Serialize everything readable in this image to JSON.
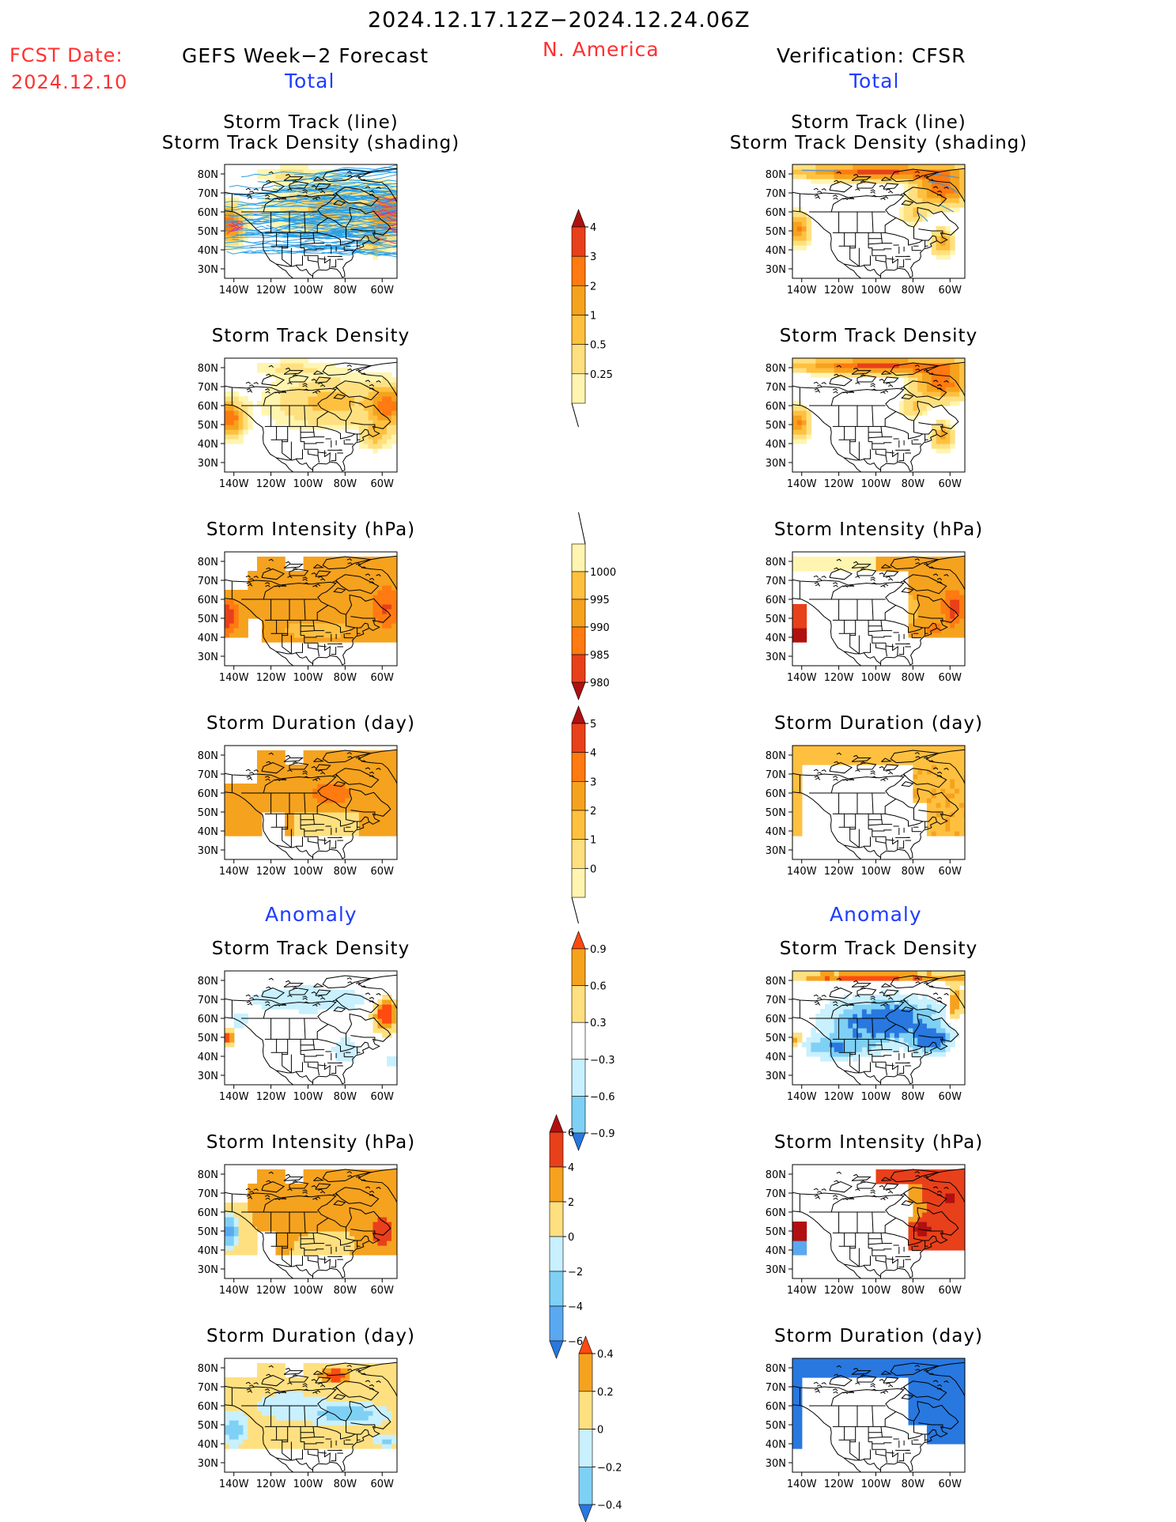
{
  "header": {
    "period": "2024.12.17.12Z−2024.12.24.06Z",
    "fcst_label": "FCST Date:",
    "fcst_date": "2024.12.10",
    "left_title": "GEFS Week−2 Forecast",
    "region": "N. America",
    "right_title": "Verification: CFSR",
    "total_left": "Total",
    "total_right": "Total",
    "anomaly_left": "Anomaly",
    "anomaly_right": "Anomaly"
  },
  "colors": {
    "lightyellow": "#fff5b0",
    "yellow": "#ffe080",
    "orange_light": "#ffc040",
    "orange": "#f5a21e",
    "orange_dark": "#ff7a10",
    "red": "#e8401a",
    "dark_red": "#b01010",
    "lightblue": "#c8f0ff",
    "sky": "#7fd0f5",
    "blue": "#2878e0",
    "dark_blue": "#1050c8",
    "track_line": "#2aa0e8",
    "land_line": "#000000"
  },
  "chart_data": [
    {
      "type": "heatmap",
      "id": "l1",
      "title1": "Storm Track (line)",
      "title2": "Storm Track Density (shading)",
      "field": "track_line_fcst"
    },
    {
      "type": "heatmap",
      "id": "l2",
      "title1": "Storm Track Density",
      "field": "density_fcst"
    },
    {
      "type": "heatmap",
      "id": "l3",
      "title1": "Storm Intensity (hPa)",
      "field": "intensity_fcst"
    },
    {
      "type": "heatmap",
      "id": "l4",
      "title1": "Storm Duration (day)",
      "field": "duration_fcst"
    },
    {
      "type": "heatmap",
      "id": "l5",
      "title1": "Storm Track Density",
      "field": "density_anom_fcst"
    },
    {
      "type": "heatmap",
      "id": "l6",
      "title1": "Storm Intensity (hPa)",
      "field": "intensity_anom_fcst"
    },
    {
      "type": "heatmap",
      "id": "l7",
      "title1": "Storm Duration (day)",
      "field": "duration_anom_fcst"
    },
    {
      "type": "heatmap",
      "id": "r1",
      "title1": "Storm Track (line)",
      "title2": "Storm Track Density (shading)",
      "field": "track_line_obs"
    },
    {
      "type": "heatmap",
      "id": "r2",
      "title1": "Storm Track Density",
      "field": "density_obs"
    },
    {
      "type": "heatmap",
      "id": "r3",
      "title1": "Storm Intensity (hPa)",
      "field": "intensity_obs"
    },
    {
      "type": "heatmap",
      "id": "r4",
      "title1": "Storm Duration (day)",
      "field": "duration_obs"
    },
    {
      "type": "heatmap",
      "id": "r5",
      "title1": "Storm Track Density",
      "field": "density_anom_obs"
    },
    {
      "type": "heatmap",
      "id": "r6",
      "title1": "Storm Intensity (hPa)",
      "field": "intensity_anom_obs"
    },
    {
      "type": "heatmap",
      "id": "r7",
      "title1": "Storm Duration (day)",
      "field": "duration_anom_obs"
    }
  ],
  "axes": {
    "x_ticks": [
      "140W",
      "120W",
      "100W",
      "80W",
      "60W"
    ],
    "y_ticks": [
      "80N",
      "70N",
      "60N",
      "50N",
      "40N",
      "30N"
    ],
    "x_range": [
      -145,
      -52
    ],
    "y_range": [
      25,
      85
    ]
  },
  "colorbars": [
    {
      "id": "cb_density",
      "labels": [
        "4",
        "3",
        "2",
        "1",
        "0.5",
        "0.25"
      ],
      "colors": [
        "#b01010",
        "#e8401a",
        "#ff7a10",
        "#f5a21e",
        "#ffc040",
        "#ffe080",
        "#fff5b0"
      ],
      "arrow_top": true,
      "arrow_bottom": false
    },
    {
      "id": "cb_intensity",
      "labels": [
        "1000",
        "995",
        "990",
        "985",
        "980"
      ],
      "colors": [
        "#fff5b0",
        "#ffc040",
        "#f5a21e",
        "#ff7a10",
        "#e8401a",
        "#b01010"
      ],
      "arrow_top": false,
      "arrow_bottom": true
    },
    {
      "id": "cb_duration",
      "labels": [
        "5",
        "4",
        "3",
        "2",
        "1",
        "0"
      ],
      "colors": [
        "#b01010",
        "#e8401a",
        "#ff7a10",
        "#f5a21e",
        "#ffc040",
        "#ffe080",
        "#fff5b0"
      ],
      "arrow_top": true,
      "arrow_bottom": false
    },
    {
      "id": "cb_density_anom",
      "labels": [
        "0.9",
        "0.6",
        "0.3",
        "−0.3",
        "−0.6",
        "−0.9"
      ],
      "colors": [
        "#ff4a10",
        "#f5a21e",
        "#ffe080",
        "#ffffff",
        "#c8f0ff",
        "#7fd0f5",
        "#2878e0"
      ],
      "arrow_top": true,
      "arrow_bottom": true
    },
    {
      "id": "cb_intensity_anom",
      "labels": [
        "6",
        "4",
        "2",
        "0",
        "−2",
        "−4",
        "−6"
      ],
      "colors": [
        "#b01010",
        "#e8401a",
        "#f5a21e",
        "#ffe080",
        "#c8f0ff",
        "#7fd0f5",
        "#5aa8f0",
        "#2878e0"
      ],
      "arrow_top": true,
      "arrow_bottom": true
    },
    {
      "id": "cb_duration_anom",
      "labels": [
        "0.4",
        "0.2",
        "0",
        "−0.2",
        "−0.4"
      ],
      "colors": [
        "#ff4a10",
        "#f5a21e",
        "#ffe080",
        "#c8f0ff",
        "#7fd0f5",
        "#2878e0"
      ],
      "arrow_top": true,
      "arrow_bottom": true
    }
  ]
}
